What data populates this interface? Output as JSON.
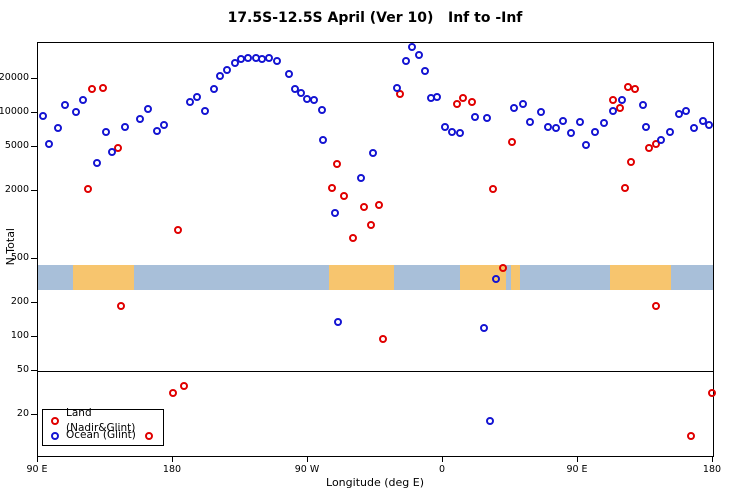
{
  "title": "17.5S-12.5S April (Ver 10)   Inf to -Inf",
  "x_axis": {
    "label": "Longitude (deg E)",
    "ticks": [
      {
        "deg": 0,
        "label": "90 E"
      },
      {
        "deg": 90,
        "label": "180"
      },
      {
        "deg": 180,
        "label": "90 W"
      },
      {
        "deg": 270,
        "label": "0"
      },
      {
        "deg": 360,
        "label": "90 E"
      },
      {
        "deg": 450,
        "label": "180"
      }
    ]
  },
  "y_axis": {
    "label": "N Total",
    "ticks": [
      {
        "value": 20000,
        "label": "20000"
      },
      {
        "value": 10000,
        "label": "10000"
      },
      {
        "value": 5000,
        "label": "5000"
      },
      {
        "value": 2000,
        "label": "2000"
      },
      {
        "value": 500,
        "label": "500"
      },
      {
        "value": 200,
        "label": "200"
      },
      {
        "value": 100,
        "label": "100"
      },
      {
        "value": 50,
        "label": "50"
      },
      {
        "value": 20,
        "label": "20"
      }
    ]
  },
  "legend": {
    "items": [
      {
        "label": "Land (Nadir&Glint)",
        "color": "#e00000"
      },
      {
        "label": "Ocean (Glint)",
        "color": "#1414d2"
      }
    ]
  },
  "chart_data": {
    "type": "scatter",
    "title": "17.5S-12.5S April (Ver 10)   Inf to -Inf",
    "xlabel": "Longitude (deg E)",
    "ylabel": "N Total",
    "x_axis_note": "axis runs 90E -> 180 -> 90W -> 0 -> 90E -> 180 (450 deg total, deg measured from left edge at 90E)",
    "x_span": [
      0,
      450
    ],
    "y_scale": "log",
    "ylim": [
      8.7,
      42000
    ],
    "ref_line_N": 50,
    "map_band": {
      "N_range": [
        265,
        440
      ],
      "ocean_color": "#a8bfd9",
      "land_color": "#f7c56e",
      "land_segments_deg": [
        [
          23,
          64
        ],
        [
          194,
          237
        ],
        [
          281,
          312
        ],
        [
          315.5,
          321
        ],
        [
          381,
          422
        ]
      ]
    },
    "series": [
      {
        "name": "Land (Nadir&Glint)",
        "color": "#e00000",
        "points": [
          [
            33,
            2100
          ],
          [
            36,
            16400
          ],
          [
            43,
            16800
          ],
          [
            53,
            4900
          ],
          [
            55,
            190
          ],
          [
            74,
            13
          ],
          [
            90,
            32
          ],
          [
            93,
            900
          ],
          [
            97,
            37
          ],
          [
            196,
            2150
          ],
          [
            199,
            3500
          ],
          [
            204,
            1800
          ],
          [
            210,
            760
          ],
          [
            217,
            1450
          ],
          [
            222,
            1000
          ],
          [
            227,
            1500
          ],
          [
            230,
            97
          ],
          [
            241,
            14800
          ],
          [
            279,
            12000
          ],
          [
            283,
            13600
          ],
          [
            289,
            12600
          ],
          [
            303,
            2100
          ],
          [
            310,
            410
          ],
          [
            316,
            5500
          ],
          [
            383,
            12900
          ],
          [
            388,
            11000
          ],
          [
            391,
            2150
          ],
          [
            393,
            17100
          ],
          [
            395,
            3650
          ],
          [
            398,
            16400
          ],
          [
            407,
            4850
          ],
          [
            412,
            5300
          ],
          [
            412,
            190
          ],
          [
            435,
            13
          ],
          [
            449,
            32
          ]
        ]
      },
      {
        "name": "Ocean (Glint)",
        "color": "#1414d2",
        "points": [
          [
            3,
            9400
          ],
          [
            7,
            5300
          ],
          [
            13,
            7300
          ],
          [
            18,
            11700
          ],
          [
            25,
            10200
          ],
          [
            30,
            12900
          ],
          [
            39,
            3560
          ],
          [
            45,
            6800
          ],
          [
            49,
            4500
          ],
          [
            58,
            7450
          ],
          [
            68,
            8800
          ],
          [
            73,
            10800
          ],
          [
            79,
            6900
          ],
          [
            84,
            7800
          ],
          [
            101,
            12500
          ],
          [
            106,
            13900
          ],
          [
            111,
            10400
          ],
          [
            117,
            16400
          ],
          [
            121,
            21500
          ],
          [
            126,
            24300
          ],
          [
            131,
            28100
          ],
          [
            135,
            30500
          ],
          [
            140,
            31100
          ],
          [
            145,
            31100
          ],
          [
            149,
            30500
          ],
          [
            154,
            31100
          ],
          [
            159,
            29000
          ],
          [
            167,
            22300
          ],
          [
            171,
            16400
          ],
          [
            175,
            14900
          ],
          [
            179,
            13300
          ],
          [
            184,
            12900
          ],
          [
            189,
            10700
          ],
          [
            190,
            5750
          ],
          [
            198,
            1280
          ],
          [
            200,
            135
          ],
          [
            215,
            2630
          ],
          [
            223,
            4400
          ],
          [
            239,
            16700
          ],
          [
            245,
            28800
          ],
          [
            249,
            38800
          ],
          [
            254,
            32600
          ],
          [
            258,
            23400
          ],
          [
            262,
            13600
          ],
          [
            266,
            13900
          ],
          [
            271,
            7450
          ],
          [
            276,
            6800
          ],
          [
            281,
            6650
          ],
          [
            291,
            9200
          ],
          [
            297,
            120
          ],
          [
            299,
            9050
          ],
          [
            301,
            18
          ],
          [
            305,
            330
          ],
          [
            317,
            11100
          ],
          [
            323,
            12100
          ],
          [
            328,
            8300
          ],
          [
            335,
            10200
          ],
          [
            340,
            7450
          ],
          [
            345,
            7300
          ],
          [
            350,
            8400
          ],
          [
            355,
            6650
          ],
          [
            361,
            8300
          ],
          [
            365,
            5200
          ],
          [
            371,
            6800
          ],
          [
            377,
            8150
          ],
          [
            383,
            10400
          ],
          [
            389,
            12900
          ],
          [
            403,
            11700
          ],
          [
            405,
            7450
          ],
          [
            415,
            5700
          ],
          [
            421,
            6800
          ],
          [
            427,
            9800
          ],
          [
            432,
            10400
          ],
          [
            437,
            7350
          ],
          [
            443,
            8400
          ],
          [
            447,
            7800
          ]
        ]
      }
    ]
  }
}
